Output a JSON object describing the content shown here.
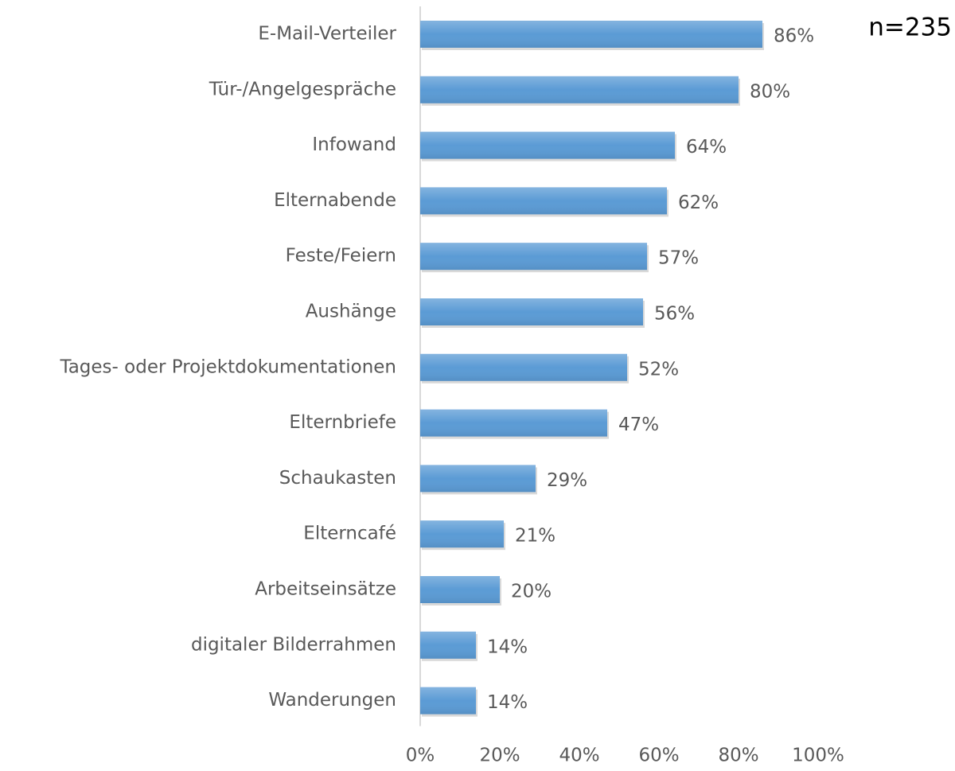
{
  "chart_data": {
    "type": "bar",
    "orientation": "horizontal",
    "annotation": "n=235",
    "categories": [
      "E-Mail-Verteiler",
      "Tür-/Angelgespräche",
      "Infowand",
      "Elternabende",
      "Feste/Feiern",
      "Aushänge",
      "Tages- oder Projektdokumentationen",
      "Elternbriefe",
      "Schaukasten",
      "Elterncafé",
      "Arbeitseinsätze",
      "digitaler Bilderrahmen",
      "Wanderungen"
    ],
    "values": [
      86,
      80,
      64,
      62,
      57,
      56,
      52,
      47,
      29,
      21,
      20,
      14,
      14
    ],
    "value_labels": [
      "86%",
      "80%",
      "64%",
      "62%",
      "57%",
      "56%",
      "52%",
      "47%",
      "29%",
      "21%",
      "20%",
      "14%",
      "14%"
    ],
    "color": "#5b9bd5",
    "xlim": [
      0,
      100
    ],
    "xticks": [
      {
        "value": 0,
        "label": "0%"
      },
      {
        "value": 20,
        "label": "20%"
      },
      {
        "value": 40,
        "label": "40%"
      },
      {
        "value": 60,
        "label": "60%"
      },
      {
        "value": 80,
        "label": "80%"
      },
      {
        "value": 100,
        "label": "100%"
      }
    ],
    "grid": false
  }
}
